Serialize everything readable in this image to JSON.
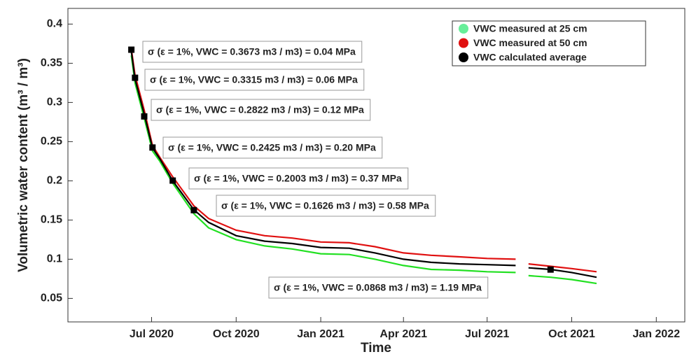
{
  "chart_data": {
    "type": "line",
    "y_label": "Volumetric water content (m³ / m³)",
    "x_label": "Time",
    "x": [
      "2020-06-09",
      "2020-06-13",
      "2020-06-23",
      "2020-07-02",
      "2020-07-10",
      "2020-07-24",
      "2020-08-16",
      "2020-09-01",
      "2020-10-01",
      "2020-11-01",
      "2020-12-01",
      "2021-01-01",
      "2021-02-01",
      "2021-03-01",
      "2021-04-01",
      "2021-05-01",
      "2021-06-01",
      "2021-07-01",
      "2021-08-01",
      "2021-08-08",
      "2021-08-15",
      "2021-09-08",
      "2021-10-01",
      "2021-10-28"
    ],
    "series": [
      {
        "name": "VWC measured at 25 cm",
        "color": "#22e022",
        "legend_color": "#66ee99",
        "values": [
          0.36,
          0.325,
          0.28,
          0.238,
          0.225,
          0.197,
          0.158,
          0.14,
          0.125,
          0.117,
          0.113,
          0.107,
          0.106,
          0.1,
          0.092,
          0.087,
          0.086,
          0.084,
          0.083,
          null,
          0.079,
          0.077,
          0.074,
          0.069
        ]
      },
      {
        "name": "VWC measured at 50 cm",
        "color": "#e01010",
        "values": [
          0.368,
          0.335,
          0.29,
          0.245,
          0.23,
          0.205,
          0.168,
          0.152,
          0.137,
          0.13,
          0.127,
          0.122,
          0.121,
          0.116,
          0.108,
          0.105,
          0.103,
          0.101,
          0.1,
          null,
          0.094,
          0.091,
          0.088,
          0.084
        ]
      },
      {
        "name": "VWC calculated average",
        "color": "#000000",
        "values": [
          0.365,
          0.33,
          0.285,
          0.242,
          0.228,
          0.2,
          0.163,
          0.147,
          0.13,
          0.123,
          0.12,
          0.115,
          0.114,
          0.108,
          0.1,
          0.096,
          0.094,
          0.093,
          0.092,
          null,
          0.089,
          0.087,
          0.083,
          0.077
        ]
      }
    ],
    "markers": {
      "x": [
        "2020-06-09",
        "2020-06-13",
        "2020-06-23",
        "2020-07-02",
        "2020-07-24",
        "2020-08-16",
        "2021-09-08"
      ],
      "values": [
        0.3673,
        0.3315,
        0.2822,
        0.2425,
        0.2003,
        0.1626,
        0.0868
      ]
    },
    "annotations": [
      "σ (ε = 1%, VWC = 0.3673 m3 / m3) = 0.04 MPa",
      "σ (ε = 1%, VWC = 0.3315 m3 / m3) = 0.06 MPa",
      "σ (ε = 1%, VWC = 0.2822 m3 / m3) = 0.12 MPa",
      "σ (ε = 1%, VWC = 0.2425 m3 / m3) = 0.20 MPa",
      "σ (ε = 1%, VWC = 0.2003 m3 / m3) = 0.37 MPa",
      "σ (ε = 1%, VWC = 0.1626 m3 / m3) = 0.58 MPa",
      "σ (ε = 1%, VWC = 0.0868 m3 / m3) = 1.19 MPa"
    ],
    "xlim": [
      "2020-04-01",
      "2022-02-01"
    ],
    "xticks": [
      {
        "value": "2020-07-01",
        "label": "Jul 2020"
      },
      {
        "value": "2020-10-01",
        "label": "Oct 2020"
      },
      {
        "value": "2021-01-01",
        "label": "Jan 2021"
      },
      {
        "value": "2021-04-01",
        "label": "Apr 2021"
      },
      {
        "value": "2021-07-01",
        "label": "Jul 2021"
      },
      {
        "value": "2021-10-01",
        "label": "Oct 2021"
      },
      {
        "value": "2022-01-01",
        "label": "Jan 2022"
      }
    ],
    "ylim": [
      0.02,
      0.42
    ],
    "yticks": [
      0.05,
      0.1,
      0.15,
      0.2,
      0.25,
      0.3,
      0.35,
      0.4
    ],
    "legend": "top-right"
  }
}
